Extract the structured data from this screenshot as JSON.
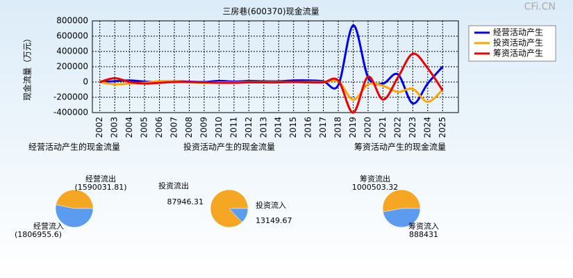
{
  "watermark": "CFi.CN",
  "chart_data": [
    {
      "type": "line",
      "title": "三房巷(600370)现金流量",
      "y_label": "现金流量（万元）",
      "categories": [
        "2002",
        "2003",
        "2004",
        "2005",
        "2006",
        "2007",
        "2008",
        "2009",
        "2010",
        "2011",
        "2012",
        "2013",
        "2014",
        "2015",
        "2016",
        "2017",
        "2018",
        "2019",
        "2020",
        "2021",
        "2022",
        "2023",
        "2024",
        "2025"
      ],
      "ylim": [
        -400000,
        800000
      ],
      "yticks": [
        -400000,
        -200000,
        0,
        200000,
        400000,
        600000,
        800000
      ],
      "grid": true,
      "legend": "right",
      "series": [
        {
          "name": "经营活动产生",
          "color": "#0000ee",
          "values": [
            0,
            10000,
            20000,
            5000,
            0,
            10000,
            5000,
            0,
            15000,
            5000,
            15000,
            10000,
            10000,
            20000,
            20000,
            10000,
            -40000,
            740000,
            60000,
            -20000,
            100000,
            -280000,
            -20000,
            200000
          ]
        },
        {
          "name": "投资活动产生",
          "color": "#ffa500",
          "values": [
            0,
            -30000,
            -20000,
            -10000,
            10000,
            10000,
            -5000,
            -10000,
            -5000,
            -5000,
            0,
            0,
            0,
            0,
            0,
            0,
            10000,
            -230000,
            -30000,
            -50000,
            -130000,
            -90000,
            -260000,
            -100000
          ]
        },
        {
          "name": "筹资活动产生",
          "color": "#ee0000",
          "values": [
            0,
            50000,
            0,
            -20000,
            -10000,
            0,
            0,
            -5000,
            -10000,
            -10000,
            -5000,
            -5000,
            -5000,
            0,
            -5000,
            -5000,
            20000,
            -400000,
            70000,
            -230000,
            60000,
            370000,
            180000,
            -110000
          ]
        }
      ]
    },
    {
      "type": "pie",
      "title": "经营活动产生的现金流量",
      "categories": [
        "经营流出",
        "经营流入"
      ],
      "values": [
        1590031.81,
        1806955.6
      ],
      "value_labels": [
        "(1590031.81)",
        "(1806955.6)"
      ],
      "colors": [
        "#f5a623",
        "#5b9bf0"
      ]
    },
    {
      "type": "pie",
      "title": "投资活动产生的现金流量",
      "categories": [
        "投资流出",
        "投资流入"
      ],
      "values": [
        87946.31,
        13149.67
      ],
      "value_labels": [
        "87946.31",
        "13149.67"
      ],
      "colors": [
        "#f5a623",
        "#5b9bf0"
      ]
    },
    {
      "type": "pie",
      "title": "筹资活动产生的现金流量",
      "categories": [
        "筹资流出",
        "筹资流入"
      ],
      "values": [
        1000503.32,
        888431
      ],
      "value_labels": [
        "1000503.32",
        "888431"
      ],
      "colors": [
        "#f5a623",
        "#5b9bf0"
      ]
    }
  ]
}
